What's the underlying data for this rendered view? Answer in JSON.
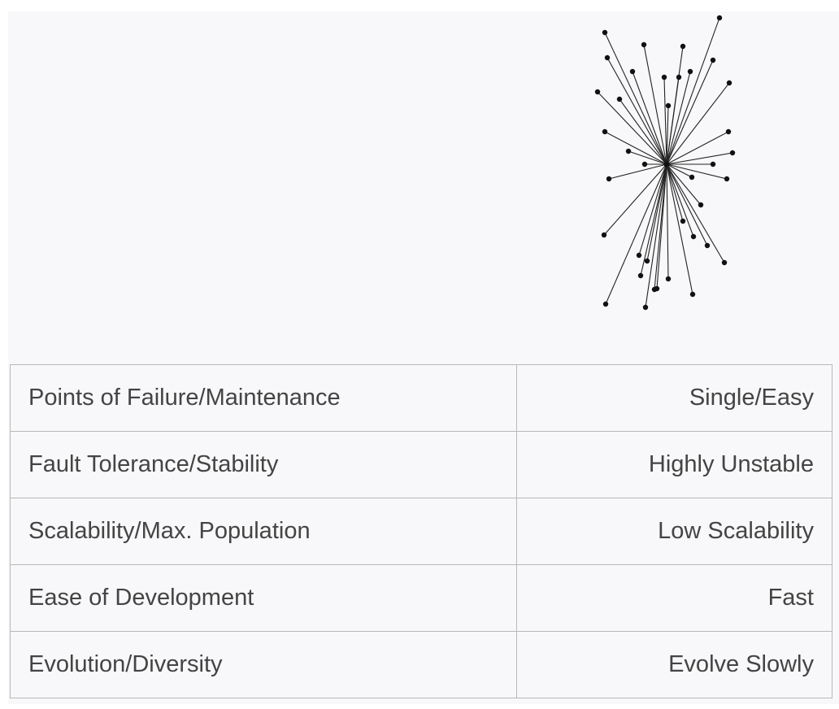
{
  "diagram": {
    "type": "star-network",
    "hub_label": "",
    "node_count": 38
  },
  "properties": [
    {
      "label": "Points of Failure/Maintenance",
      "value": "Single/Easy"
    },
    {
      "label": "Fault Tolerance/Stability",
      "value": "Highly Unstable"
    },
    {
      "label": "Scalability/Max. Population",
      "value": "Low Scalability"
    },
    {
      "label": "Ease of Development",
      "value": "Fast"
    },
    {
      "label": "Evolution/Diversity",
      "value": "Evolve Slowly"
    }
  ]
}
